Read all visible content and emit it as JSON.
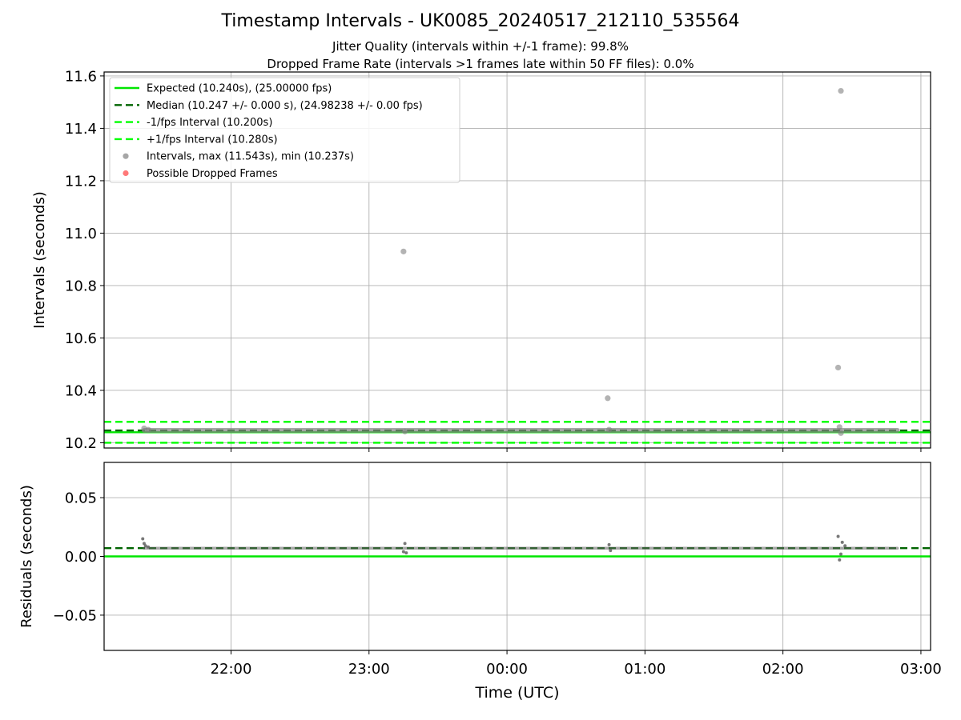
{
  "chart_data": [
    {
      "type": "scatter",
      "title": "Timestamp Intervals - UK0085_20240517_212110_535564",
      "subtitle_lines": [
        "Jitter Quality (intervals within +/-1 frame): 99.8%",
        "Dropped Frame Rate (intervals >1 frames late within 50 FF files): 0.0%"
      ],
      "xlabel": "",
      "ylabel": "Intervals (seconds)",
      "xlim_hours": [
        21.08,
        27.07
      ],
      "ylim": [
        10.18,
        11.615
      ],
      "x_ticks": [
        {
          "hour": 22,
          "label": "22:00"
        },
        {
          "hour": 23,
          "label": "23:00"
        },
        {
          "hour": 24,
          "label": "00:00"
        },
        {
          "hour": 25,
          "label": "01:00"
        },
        {
          "hour": 26,
          "label": "02:00"
        },
        {
          "hour": 27,
          "label": "03:00"
        }
      ],
      "y_ticks": [
        10.2,
        10.4,
        10.6,
        10.8,
        11.0,
        11.2,
        11.4,
        11.6
      ],
      "tick_labels_x_visible": false,
      "grid": true,
      "legend_position": "upper-left",
      "reference_lines": [
        {
          "name": "Expected (10.240s), (25.00000 fps)",
          "y": 10.24,
          "style": "solid",
          "color": "#00e600"
        },
        {
          "name": "Median (10.247 +/- 0.000 s), (24.98238 +/- 0.00 fps)",
          "y": 10.247,
          "style": "dashed",
          "color": "#006400"
        },
        {
          "name": "-1/fps Interval (10.200s)",
          "y": 10.2,
          "style": "dashed",
          "color": "#00ff00"
        },
        {
          "name": "+1/fps Interval (10.280s)",
          "y": 10.28,
          "style": "dashed",
          "color": "#00ff00"
        }
      ],
      "series": [
        {
          "name": "Intervals, max (11.543s), min (10.237s)",
          "color": "#808080",
          "baseline_value": 10.247,
          "baseline_start_hour": 21.37,
          "baseline_end_hour": 26.83,
          "points": [
            {
              "x": 21.37,
              "y": 10.255
            },
            {
              "x": 21.4,
              "y": 10.25
            },
            {
              "x": 23.25,
              "y": 10.93
            },
            {
              "x": 23.26,
              "y": 10.243
            },
            {
              "x": 24.73,
              "y": 10.37
            },
            {
              "x": 24.74,
              "y": 10.25
            },
            {
              "x": 26.4,
              "y": 10.487
            },
            {
              "x": 26.41,
              "y": 10.26
            },
            {
              "x": 26.42,
              "y": 11.543
            },
            {
              "x": 26.42,
              "y": 10.237
            }
          ]
        },
        {
          "name": "Possible Dropped Frames",
          "color": "#ff4040",
          "points": []
        }
      ]
    },
    {
      "type": "scatter",
      "title": "",
      "xlabel": "Time (UTC)",
      "ylabel": "Residuals (seconds)",
      "xlim_hours": [
        21.08,
        27.07
      ],
      "ylim": [
        -0.08,
        0.08
      ],
      "y_ticks": [
        {
          "value": 0.05,
          "label": "0.05"
        },
        {
          "value": 0.0,
          "label": "0.00"
        },
        {
          "value": -0.05,
          "label": "−0.05"
        }
      ],
      "x_ticks": [
        {
          "hour": 22,
          "label": "22:00"
        },
        {
          "hour": 23,
          "label": "23:00"
        },
        {
          "hour": 24,
          "label": "00:00"
        },
        {
          "hour": 25,
          "label": "01:00"
        },
        {
          "hour": 26,
          "label": "02:00"
        },
        {
          "hour": 27,
          "label": "03:00"
        }
      ],
      "grid": true,
      "reference_lines": [
        {
          "y": 0.0,
          "style": "solid",
          "color": "#00e600"
        },
        {
          "y": 0.007,
          "style": "dashed",
          "color": "#006400"
        }
      ],
      "series": [
        {
          "name": "Residuals",
          "color": "#606060",
          "baseline_value": 0.007,
          "baseline_start_hour": 21.37,
          "baseline_end_hour": 26.83,
          "points": [
            {
              "x": 21.36,
              "y": 0.015
            },
            {
              "x": 21.37,
              "y": 0.011
            },
            {
              "x": 21.38,
              "y": 0.009
            },
            {
              "x": 21.4,
              "y": 0.008
            },
            {
              "x": 23.25,
              "y": 0.004
            },
            {
              "x": 23.26,
              "y": 0.011
            },
            {
              "x": 23.27,
              "y": 0.003
            },
            {
              "x": 24.74,
              "y": 0.01
            },
            {
              "x": 24.75,
              "y": 0.005
            },
            {
              "x": 26.4,
              "y": 0.017
            },
            {
              "x": 26.41,
              "y": -0.003
            },
            {
              "x": 26.42,
              "y": 0.002
            },
            {
              "x": 26.43,
              "y": 0.012
            },
            {
              "x": 26.45,
              "y": 0.009
            }
          ]
        }
      ]
    }
  ]
}
